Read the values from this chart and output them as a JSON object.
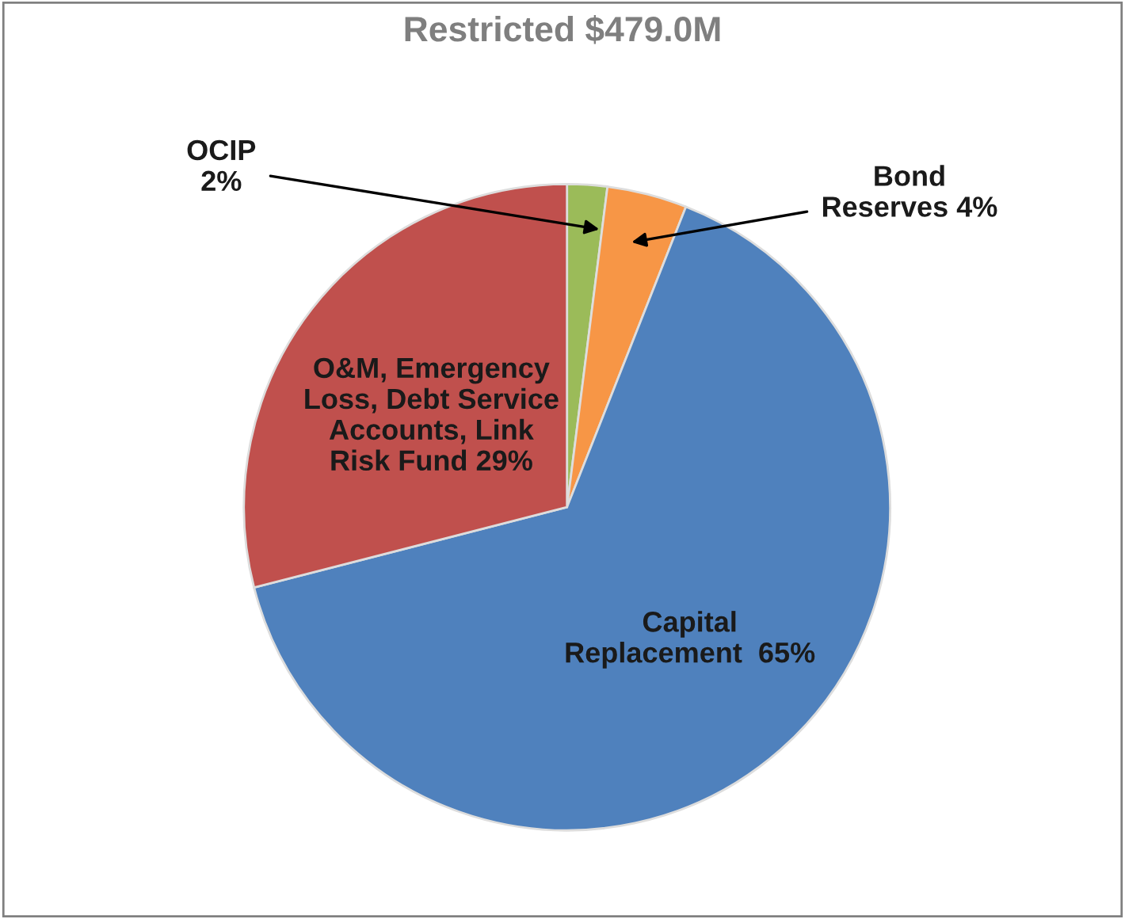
{
  "chart_data": {
    "type": "pie",
    "title": "Restricted $479.0M",
    "categories": [
      "OCIP",
      "Bond\nReserves",
      "Capital\nReplacement ",
      "O&M, Emergency\nLoss, Debt Service\nAccounts, Link\nRisk Fund"
    ],
    "values": [
      2,
      4,
      65,
      29
    ],
    "value_labels": [
      "2%",
      "4%",
      "65%",
      "29%"
    ],
    "colors": [
      "#9bbb59",
      "#f79646",
      "#4f81bd",
      "#c0504d"
    ]
  }
}
